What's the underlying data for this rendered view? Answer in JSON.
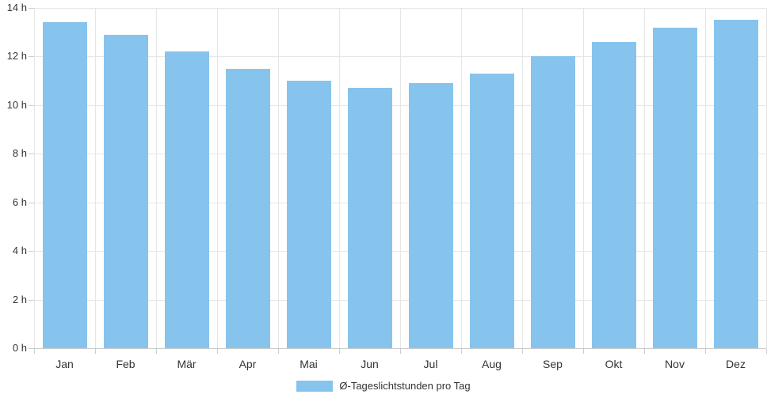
{
  "chart_data": {
    "type": "bar",
    "title": "",
    "xlabel": "",
    "ylabel": "",
    "categories": [
      "Jan",
      "Feb",
      "Mär",
      "Apr",
      "Mai",
      "Jun",
      "Jul",
      "Aug",
      "Sep",
      "Okt",
      "Nov",
      "Dez"
    ],
    "values": [
      13.4,
      12.9,
      12.2,
      11.5,
      11.0,
      10.7,
      10.9,
      11.3,
      12.0,
      12.6,
      13.2,
      13.5
    ],
    "ylim": [
      0,
      14
    ],
    "ytick_step": 2,
    "ytick_suffix": " h",
    "grid": true,
    "legend_position": "bottom",
    "legend_label": "Ø-Tageslichtstunden pro Tag"
  },
  "y_axis": {
    "tick_labels": [
      "0 h",
      "2 h",
      "4 h",
      "6 h",
      "8 h",
      "10 h",
      "12 h",
      "14 h"
    ]
  },
  "colors": {
    "bar": "#87c4ed",
    "grid": "#e6e6e6",
    "tick": "#cccccc",
    "axis_line": "#cccccc",
    "text": "#333333",
    "background": "#ffffff"
  }
}
